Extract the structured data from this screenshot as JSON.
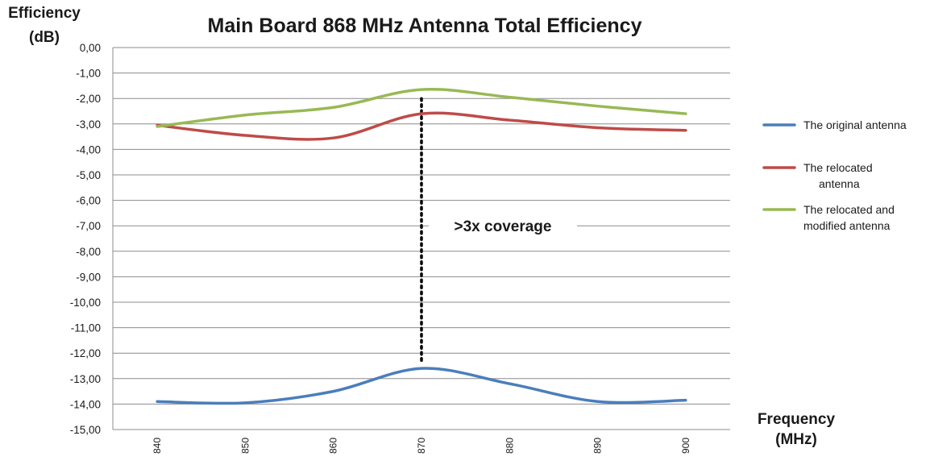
{
  "chart_data": {
    "type": "line",
    "title": "Main Board 868 MHz Antenna Total Efficiency",
    "ylabel": [
      "Efficiency",
      "(dB)"
    ],
    "xlabel": [
      "Frequency",
      "(MHz)"
    ],
    "x": [
      840,
      850,
      860,
      870,
      880,
      890,
      900
    ],
    "x_tick_labels": [
      "840",
      "850",
      "860",
      "870",
      "880",
      "890",
      "900"
    ],
    "ylim": [
      -15,
      0
    ],
    "y_tick_labels": [
      "0,00",
      "-1,00",
      "-2,00",
      "-3,00",
      "-4,00",
      "-5,00",
      "-6,00",
      "-7,00",
      "-8,00",
      "-9,00",
      "-10,00",
      "-11,00",
      "-12,00",
      "-13,00",
      "-14,00",
      "-15,00"
    ],
    "grid": true,
    "legend_position": "right",
    "series": [
      {
        "name": "The original antenna",
        "color": "#4a7ebb",
        "values": [
          -13.9,
          -13.95,
          -13.5,
          -12.6,
          -13.2,
          -13.9,
          -13.85
        ]
      },
      {
        "name": [
          "The relocated",
          "antenna"
        ],
        "color": "#be4b48",
        "values": [
          -3.05,
          -3.45,
          -3.55,
          -2.6,
          -2.85,
          -3.15,
          -3.25
        ]
      },
      {
        "name": [
          "The relocated and",
          "modified antenna"
        ],
        "color": "#98b954",
        "values": [
          -3.1,
          -2.65,
          -2.35,
          -1.65,
          -1.95,
          -2.3,
          -2.6
        ]
      }
    ],
    "annotation": {
      "text": ">3x coverage",
      "x": 870,
      "y_from": -2.0,
      "y_to": -12.3
    }
  }
}
